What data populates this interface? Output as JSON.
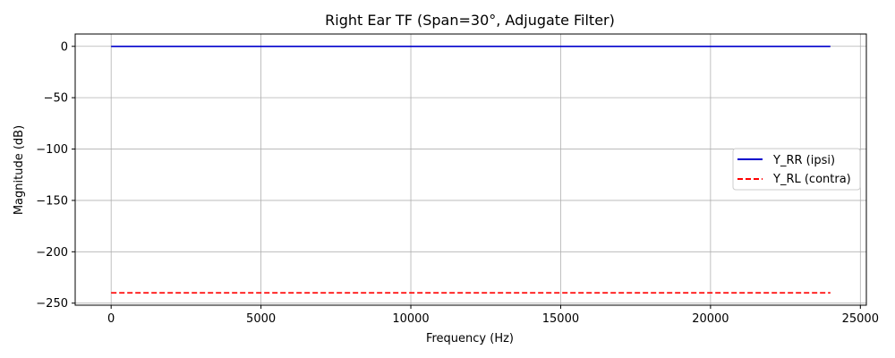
{
  "chart_data": {
    "type": "line",
    "title": "Right Ear TF (Span=30°, Adjugate Filter)",
    "xlabel": "Frequency (Hz)",
    "ylabel": "Magnitude (dB)",
    "xlim": [
      -1200,
      25200
    ],
    "ylim": [
      -252,
      12
    ],
    "xticks": [
      0,
      5000,
      10000,
      15000,
      20000,
      25000
    ],
    "xtick_labels": [
      "0",
      "5000",
      "10000",
      "15000",
      "20000",
      "25000"
    ],
    "yticks": [
      0,
      -50,
      -100,
      -150,
      -200,
      -250
    ],
    "ytick_labels": [
      "0",
      "−50",
      "−100",
      "−150",
      "−200",
      "−250"
    ],
    "grid": true,
    "legend_position": "center-right",
    "series": [
      {
        "name": "Y_RR (ipsi)",
        "color": "#0000cc",
        "style": "solid",
        "x": [
          0,
          24000
        ],
        "y": [
          0,
          0
        ]
      },
      {
        "name": "Y_RL (contra)",
        "color": "#ff0000",
        "style": "dashed",
        "x": [
          0,
          24000
        ],
        "y": [
          -240,
          -240
        ]
      }
    ]
  }
}
